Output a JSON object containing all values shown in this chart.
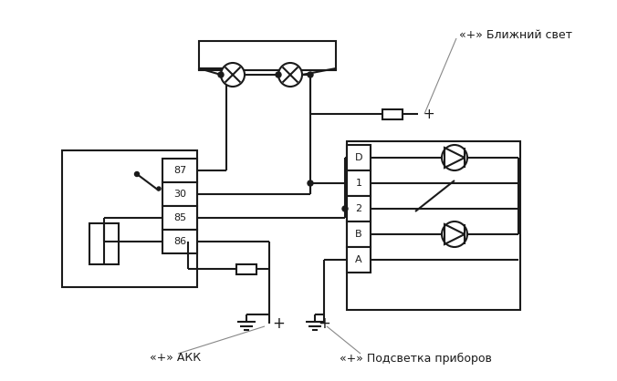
{
  "bg": "#ffffff",
  "lc": "#1a1a1a",
  "lw": 1.5,
  "fw": 6.76,
  "fh": 4.18,
  "dpi": 100,
  "relay_pins": [
    "87",
    "30",
    "85",
    "86"
  ],
  "sw_pins": [
    "D",
    "1",
    "2",
    "B",
    "A"
  ],
  "lbl_top": "«+» Ближний свет",
  "lbl_akk": "«+» АКК",
  "lbl_pod": "«+» Подсветка приборов"
}
